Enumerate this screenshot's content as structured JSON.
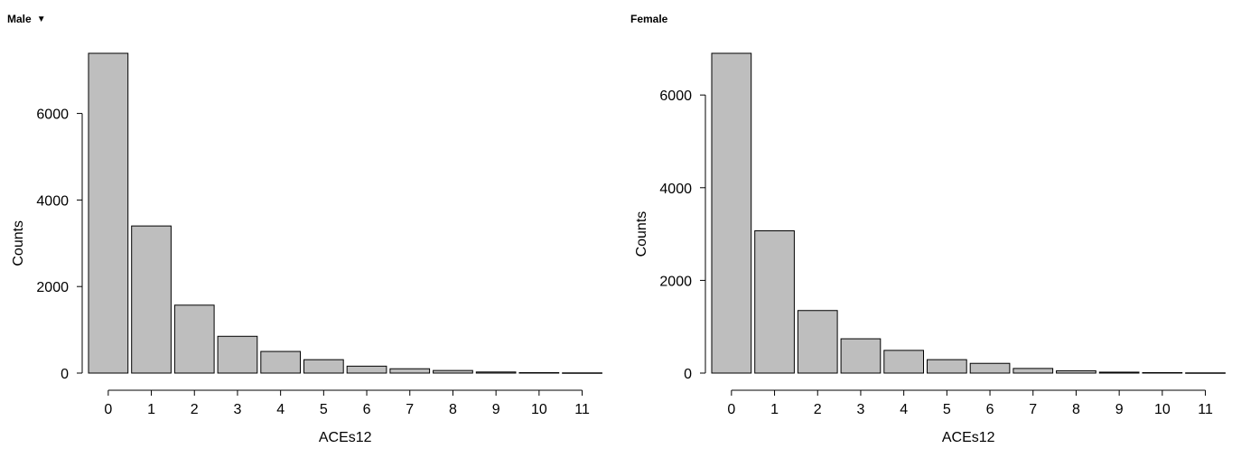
{
  "panels": [
    {
      "title": "Male",
      "has_dropdown": true,
      "dropdown_icon": "triangle-down-icon"
    },
    {
      "title": "Female",
      "has_dropdown": false
    }
  ],
  "chart_data": [
    {
      "type": "bar",
      "title": "Male",
      "xlabel": "ACEs12",
      "ylabel": "Counts",
      "categories": [
        "0",
        "1",
        "2",
        "3",
        "4",
        "5",
        "6",
        "7",
        "8",
        "9",
        "10",
        "11"
      ],
      "values": [
        7390,
        3400,
        1570,
        850,
        500,
        310,
        160,
        100,
        60,
        25,
        10,
        5
      ],
      "yticks": [
        0,
        2000,
        4000,
        6000
      ],
      "ylim": [
        0,
        7390
      ],
      "bar_color": "#bebebe",
      "grid": false
    },
    {
      "type": "bar",
      "title": "Female",
      "xlabel": "ACEs12",
      "ylabel": "Counts",
      "categories": [
        "0",
        "1",
        "2",
        "3",
        "4",
        "5",
        "6",
        "7",
        "8",
        "9",
        "10",
        "11"
      ],
      "values": [
        6900,
        3070,
        1350,
        740,
        490,
        290,
        210,
        100,
        50,
        20,
        10,
        5
      ],
      "yticks": [
        0,
        2000,
        4000,
        6000
      ],
      "ylim": [
        0,
        6900
      ],
      "bar_color": "#bebebe",
      "grid": false
    }
  ]
}
